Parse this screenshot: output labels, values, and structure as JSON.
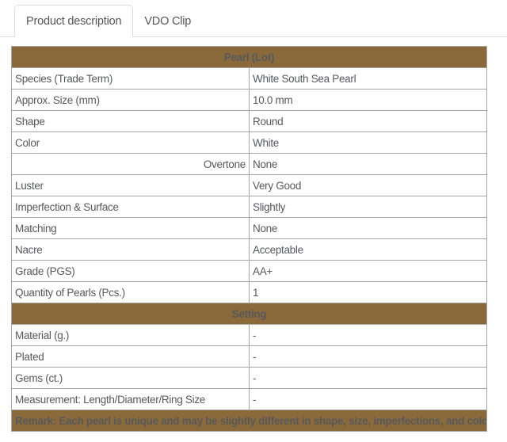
{
  "tabs": [
    {
      "label": "Product description",
      "active": true
    },
    {
      "label": "VDO Clip",
      "active": false
    }
  ],
  "table": {
    "sections": [
      {
        "header": "Pearl (Lot)",
        "rows": [
          {
            "label": "Species (Trade Term)",
            "value": "White South Sea Pearl"
          },
          {
            "label": "Approx. Size (mm)",
            "value": "10.0 mm"
          },
          {
            "label": "Shape",
            "value": "Round"
          },
          {
            "label": "Color",
            "value": "White"
          },
          {
            "label": "Overtone",
            "value": "None",
            "label_align": "right"
          },
          {
            "label": "Luster",
            "value": "Very Good"
          },
          {
            "label": "Imperfection & Surface",
            "value": "Slightly"
          },
          {
            "label": "Matching",
            "value": "None"
          },
          {
            "label": "Nacre",
            "value": "Acceptable"
          },
          {
            "label": "Grade (PGS)",
            "value": "AA+"
          },
          {
            "label": "Quantity of Pearls (Pcs.)",
            "value": "1"
          }
        ]
      },
      {
        "header": "Setting",
        "rows": [
          {
            "label": "Material (g.)",
            "value": "-"
          },
          {
            "label": "Plated",
            "value": "-"
          },
          {
            "label": "Gems (ct.)",
            "value": "-"
          },
          {
            "label": "Measurement: Length/Diameter/Ring Size",
            "value": "-"
          }
        ]
      }
    ],
    "remark": "Remark: Each pearl is unique and may be slightly different in shape, size, imperfections, and color from the advertised image."
  },
  "colors": {
    "accent_brown": "#8a6a3b",
    "header_text": "#f3eddc",
    "cell_text": "#58595b",
    "table_border": "#a6a6a6",
    "tab_border": "#dddddd"
  }
}
